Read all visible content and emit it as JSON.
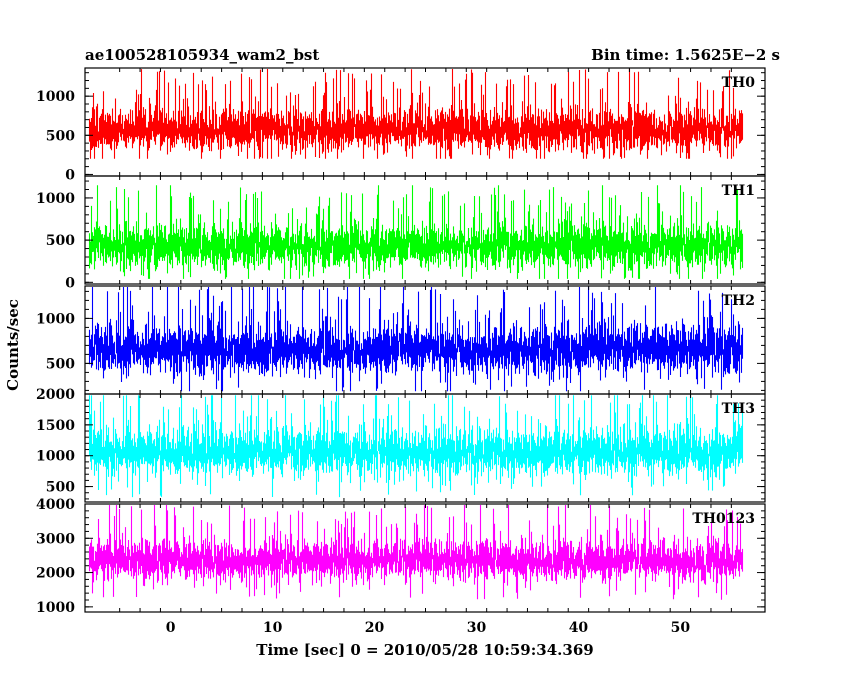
{
  "chart_data": {
    "type": "line",
    "title_left": "ae100528105934_wam2_bst",
    "title_right": "Bin time: 1.5625E−2 s",
    "xlabel": "Time [sec] 0 = 2010/05/28 10:59:34.369",
    "ylabel": "Counts/sec",
    "xlim": [
      -8.4,
      58.3
    ],
    "x_data_range": [
      -8.0,
      56.0
    ],
    "bin_time": 0.015625,
    "x_ticks": [
      0,
      10,
      20,
      30,
      40,
      50
    ],
    "x_tick_labels": [
      "0",
      "10",
      "20",
      "30",
      "40",
      "50"
    ],
    "grid": false,
    "panels": [
      {
        "name": "TH0",
        "color": "#ff0000",
        "ylim": [
          -20,
          1360
        ],
        "yticks": [
          0,
          500,
          1000
        ],
        "ytick_labels": [
          "0",
          "500",
          "1000"
        ],
        "mean": 570,
        "spread": 230,
        "min": 200,
        "max": 1350
      },
      {
        "name": "TH1",
        "color": "#00ff00",
        "ylim": [
          -20,
          1260
        ],
        "yticks": [
          0,
          500,
          1000
        ],
        "ytick_labels": [
          "0",
          "500",
          "1000"
        ],
        "mean": 430,
        "spread": 220,
        "min": 40,
        "max": 1150
      },
      {
        "name": "TH2",
        "color": "#0000ff",
        "ylim": [
          160,
          1360
        ],
        "yticks": [
          500,
          1000
        ],
        "ytick_labels": [
          "500",
          "1000"
        ],
        "mean": 650,
        "spread": 230,
        "min": 190,
        "max": 1360
      },
      {
        "name": "TH3",
        "color": "#00ffff",
        "ylim": [
          250,
          2000
        ],
        "yticks": [
          500,
          1000,
          1500,
          2000
        ],
        "ytick_labels": [
          "500",
          "1000",
          "1500",
          "2000"
        ],
        "mean": 1060,
        "spread": 330,
        "min": 330,
        "max": 1980
      },
      {
        "name": "TH0123",
        "color": "#ff00ff",
        "ylim": [
          850,
          4000
        ],
        "yticks": [
          1000,
          2000,
          3000,
          4000
        ],
        "ytick_labels": [
          "1000",
          "2000",
          "3000",
          "4000"
        ],
        "mean": 2350,
        "spread": 500,
        "min": 900,
        "max": 4000
      }
    ]
  }
}
